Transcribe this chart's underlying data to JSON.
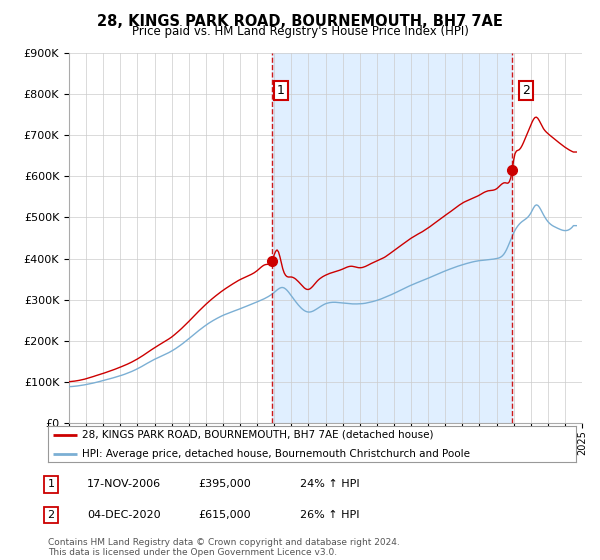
{
  "title": "28, KINGS PARK ROAD, BOURNEMOUTH, BH7 7AE",
  "subtitle": "Price paid vs. HM Land Registry's House Price Index (HPI)",
  "legend_line1": "28, KINGS PARK ROAD, BOURNEMOUTH, BH7 7AE (detached house)",
  "legend_line2": "HPI: Average price, detached house, Bournemouth Christchurch and Poole",
  "transaction1_label": "1",
  "transaction1_date": "17-NOV-2006",
  "transaction1_price": "£395,000",
  "transaction1_hpi": "24% ↑ HPI",
  "transaction1_year": 2006.875,
  "transaction1_value": 395000,
  "transaction2_label": "2",
  "transaction2_date": "04-DEC-2020",
  "transaction2_price": "£615,000",
  "transaction2_hpi": "26% ↑ HPI",
  "transaction2_year": 2020.917,
  "transaction2_value": 615000,
  "footer": "Contains HM Land Registry data © Crown copyright and database right 2024.\nThis data is licensed under the Open Government Licence v3.0.",
  "red_color": "#cc0000",
  "blue_color": "#7bafd4",
  "fill_color": "#ddeeff",
  "dashed_color": "#cc0000",
  "background_color": "#ffffff",
  "grid_color": "#cccccc",
  "ylim": [
    0,
    900000
  ],
  "xlim_start": 1995,
  "xlim_end": 2025
}
